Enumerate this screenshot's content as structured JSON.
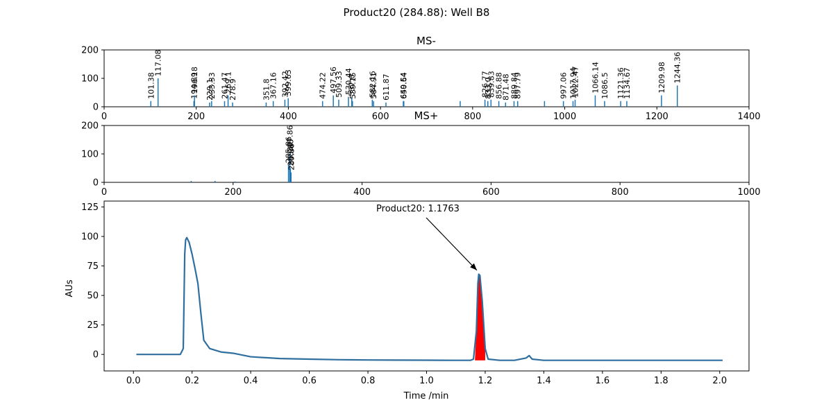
{
  "title": "Product20 (284.88): Well B8",
  "chart_data": [
    {
      "type": "bar",
      "title": "MS-",
      "xlim": [
        0,
        1400
      ],
      "ylim": [
        0,
        200
      ],
      "xticks": [
        0,
        200,
        400,
        600,
        800,
        1000,
        1200,
        1400
      ],
      "yticks": [
        0,
        100,
        200
      ],
      "peaks": [
        {
          "mz": 101.38,
          "intensity": 20,
          "label": "101.38"
        },
        {
          "mz": 117.08,
          "intensity": 100,
          "label": "117.08"
        },
        {
          "mz": 194.89,
          "intensity": 20,
          "label": "194.89"
        },
        {
          "mz": 196.18,
          "intensity": 40,
          "label": "196.18"
        },
        {
          "mz": 229.1,
          "intensity": 15,
          "label": "229.1"
        },
        {
          "mz": 233.33,
          "intensity": 20,
          "label": "233.33"
        },
        {
          "mz": 261.47,
          "intensity": 20,
          "label": "261.47"
        },
        {
          "mz": 269.1,
          "intensity": 40,
          "label": "269.1"
        },
        {
          "mz": 278.9,
          "intensity": 15,
          "label": "278.9"
        },
        {
          "mz": 351.8,
          "intensity": 15,
          "label": "351.8"
        },
        {
          "mz": 367.16,
          "intensity": 20,
          "label": "367.16"
        },
        {
          "mz": 392.42,
          "intensity": 25,
          "label": "392.42"
        },
        {
          "mz": 399.63,
          "intensity": 30,
          "label": "399.63"
        },
        {
          "mz": 474.22,
          "intensity": 20,
          "label": "474.22"
        },
        {
          "mz": 497.56,
          "intensity": 40,
          "label": "497.56"
        },
        {
          "mz": 509.33,
          "intensity": 25,
          "label": "509.33"
        },
        {
          "mz": 530.44,
          "intensity": 35,
          "label": "530.44"
        },
        {
          "mz": 537.6,
          "intensity": 30,
          "label": "537.6"
        },
        {
          "mz": 539.15,
          "intensity": 20,
          "label": "539.15"
        },
        {
          "mz": 582.16,
          "intensity": 25,
          "label": "582.16"
        },
        {
          "mz": 584.91,
          "intensity": 20,
          "label": "584.91"
        },
        {
          "mz": 611.87,
          "intensity": 15,
          "label": "611.87"
        },
        {
          "mz": 649.54,
          "intensity": 20,
          "label": "649.54"
        },
        {
          "mz": 650.64,
          "intensity": 20,
          "label": "650.64"
        },
        {
          "mz": 773.0,
          "intensity": 20,
          "label": ""
        },
        {
          "mz": 826.77,
          "intensity": 25,
          "label": "826.77"
        },
        {
          "mz": 833.0,
          "intensity": 20,
          "label": "833.0"
        },
        {
          "mz": 839.83,
          "intensity": 25,
          "label": "839.83"
        },
        {
          "mz": 856.88,
          "intensity": 20,
          "label": "856.88"
        },
        {
          "mz": 871.48,
          "intensity": 15,
          "label": "871.48"
        },
        {
          "mz": 889.84,
          "intensity": 20,
          "label": "889.84"
        },
        {
          "mz": 897.79,
          "intensity": 20,
          "label": "897.79"
        },
        {
          "mz": 956.0,
          "intensity": 20,
          "label": ""
        },
        {
          "mz": 997.06,
          "intensity": 20,
          "label": "997.06"
        },
        {
          "mz": 1017.94,
          "intensity": 20,
          "label": "1017.94"
        },
        {
          "mz": 1022.47,
          "intensity": 25,
          "label": "1022.47"
        },
        {
          "mz": 1066.14,
          "intensity": 40,
          "label": "1066.14"
        },
        {
          "mz": 1086.5,
          "intensity": 20,
          "label": "1086.5"
        },
        {
          "mz": 1121.36,
          "intensity": 20,
          "label": "1121.36"
        },
        {
          "mz": 1134.67,
          "intensity": 20,
          "label": "1134.67"
        },
        {
          "mz": 1209.98,
          "intensity": 40,
          "label": "1209.98"
        },
        {
          "mz": 1244.36,
          "intensity": 75,
          "label": "1244.36"
        }
      ]
    },
    {
      "type": "bar",
      "title": "MS+",
      "xlim": [
        0,
        1000
      ],
      "ylim": [
        0,
        200
      ],
      "xticks": [
        0,
        200,
        400,
        600,
        800,
        1000
      ],
      "yticks": [
        0,
        100,
        200
      ],
      "peaks": [
        {
          "mz": 135.0,
          "intensity": 5,
          "label": ""
        },
        {
          "mz": 172.0,
          "intensity": 5,
          "label": ""
        },
        {
          "mz": 203.0,
          "intensity": 3,
          "label": ""
        },
        {
          "mz": 285.86,
          "intensity": 60,
          "label": "285.86"
        },
        {
          "mz": 287.86,
          "intensity": 100,
          "label": "287.86"
        },
        {
          "mz": 288.86,
          "intensity": 50,
          "label": "288.86"
        },
        {
          "mz": 289.86,
          "intensity": 35,
          "label": "289.86"
        }
      ]
    },
    {
      "type": "line",
      "xlabel": "Time /min",
      "ylabel": "AUs",
      "xlim": [
        -0.1,
        2.1
      ],
      "ylim": [
        -14,
        130
      ],
      "xticks": [
        0.0,
        0.2,
        0.4,
        0.6,
        0.8,
        1.0,
        1.2,
        1.4,
        1.6,
        1.8,
        2.0
      ],
      "yticks": [
        0,
        25,
        50,
        75,
        100,
        125
      ],
      "x": [
        0.01,
        0.1,
        0.16,
        0.17,
        0.175,
        0.178,
        0.182,
        0.19,
        0.2,
        0.21,
        0.22,
        0.23,
        0.24,
        0.26,
        0.3,
        0.34,
        0.4,
        0.5,
        0.6,
        0.7,
        0.8,
        0.9,
        1.0,
        1.1,
        1.15,
        1.16,
        1.17,
        1.175,
        1.178,
        1.182,
        1.19,
        1.2,
        1.21,
        1.25,
        1.3,
        1.34,
        1.35,
        1.36,
        1.4,
        1.6,
        1.8,
        2.01
      ],
      "y": [
        0,
        0,
        0,
        5,
        85,
        97,
        99,
        95,
        85,
        73,
        60,
        35,
        12,
        5,
        2,
        1,
        -2,
        -3.5,
        -4,
        -4.5,
        -4.7,
        -4.8,
        -4.9,
        -5,
        -5,
        -4,
        20,
        60,
        68,
        67,
        45,
        5,
        -4,
        -5,
        -5,
        -3,
        -1,
        -4,
        -5,
        -5,
        -5,
        -5
      ],
      "highlight": {
        "from": 1.165,
        "to": 1.2,
        "color": "#ff0000"
      },
      "annotation": {
        "text": "Product20: 1.1763",
        "x": 1.1763,
        "y": 69
      }
    }
  ]
}
